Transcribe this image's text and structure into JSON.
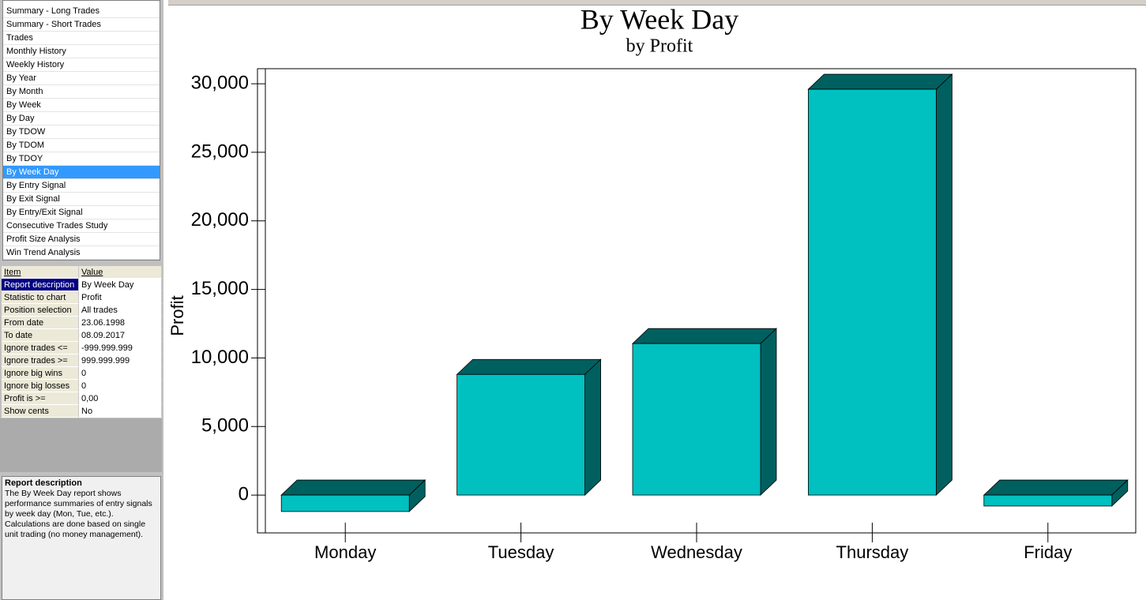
{
  "sidebar": {
    "reports": [
      {
        "label": "Summary - Long Trades"
      },
      {
        "label": "Summary - Short Trades"
      },
      {
        "label": "Trades"
      },
      {
        "label": "Monthly History"
      },
      {
        "label": "Weekly History"
      },
      {
        "label": "By Year"
      },
      {
        "label": "By Month"
      },
      {
        "label": "By Week"
      },
      {
        "label": "By Day"
      },
      {
        "label": "By TDOW"
      },
      {
        "label": "By TDOM"
      },
      {
        "label": "By TDOY"
      },
      {
        "label": "By Week Day",
        "selected": true
      },
      {
        "label": "By Entry Signal"
      },
      {
        "label": "By Exit Signal"
      },
      {
        "label": "By Entry/Exit Signal"
      },
      {
        "label": "Consecutive Trades Study"
      },
      {
        "label": "Profit Size Analysis"
      },
      {
        "label": "Win Trend Analysis"
      }
    ]
  },
  "properties": {
    "columns": [
      "Item",
      "Value"
    ],
    "rows": [
      [
        "Report description",
        "By Week Day"
      ],
      [
        "Statistic to chart",
        "Profit"
      ],
      [
        "Position selection",
        "All trades"
      ],
      [
        "From date",
        "23.06.1998"
      ],
      [
        "To date",
        "08.09.2017"
      ],
      [
        "Ignore trades <=",
        "-999.999.999"
      ],
      [
        "Ignore trades >=",
        "999.999.999"
      ],
      [
        "Ignore big wins",
        "0"
      ],
      [
        "Ignore big losses",
        "0"
      ],
      [
        "Profit is >=",
        "0,00"
      ],
      [
        "Show cents",
        "No"
      ]
    ]
  },
  "description": {
    "title": "Report description",
    "text": "The By Week Day report shows performance summaries of entry signals by week day (Mon, Tue, etc.). Calculations are done based on single unit trading (no money management)."
  },
  "chart_data": {
    "type": "bar3d",
    "title": "By Week Day",
    "subtitle": "by Profit",
    "y_label": "Profit",
    "categories": [
      "Monday",
      "Tuesday",
      "Wednesday",
      "Thursday",
      "Friday"
    ],
    "values": [
      -1200,
      8800,
      11050,
      29600,
      -800
    ],
    "color": "#00c0c0",
    "shade_color": "#006060",
    "ylim": [
      -2760,
      31100
    ],
    "yticks": [
      0,
      {
        "value": 5000,
        "label": "5,000"
      },
      {
        "value": 10000,
        "label": "10,000"
      },
      {
        "value": 15000,
        "label": "15,000"
      },
      {
        "value": 20000,
        "label": "20,000"
      },
      {
        "value": 25000,
        "label": "25,000"
      },
      {
        "value": 30000,
        "label": "30,000"
      }
    ]
  }
}
